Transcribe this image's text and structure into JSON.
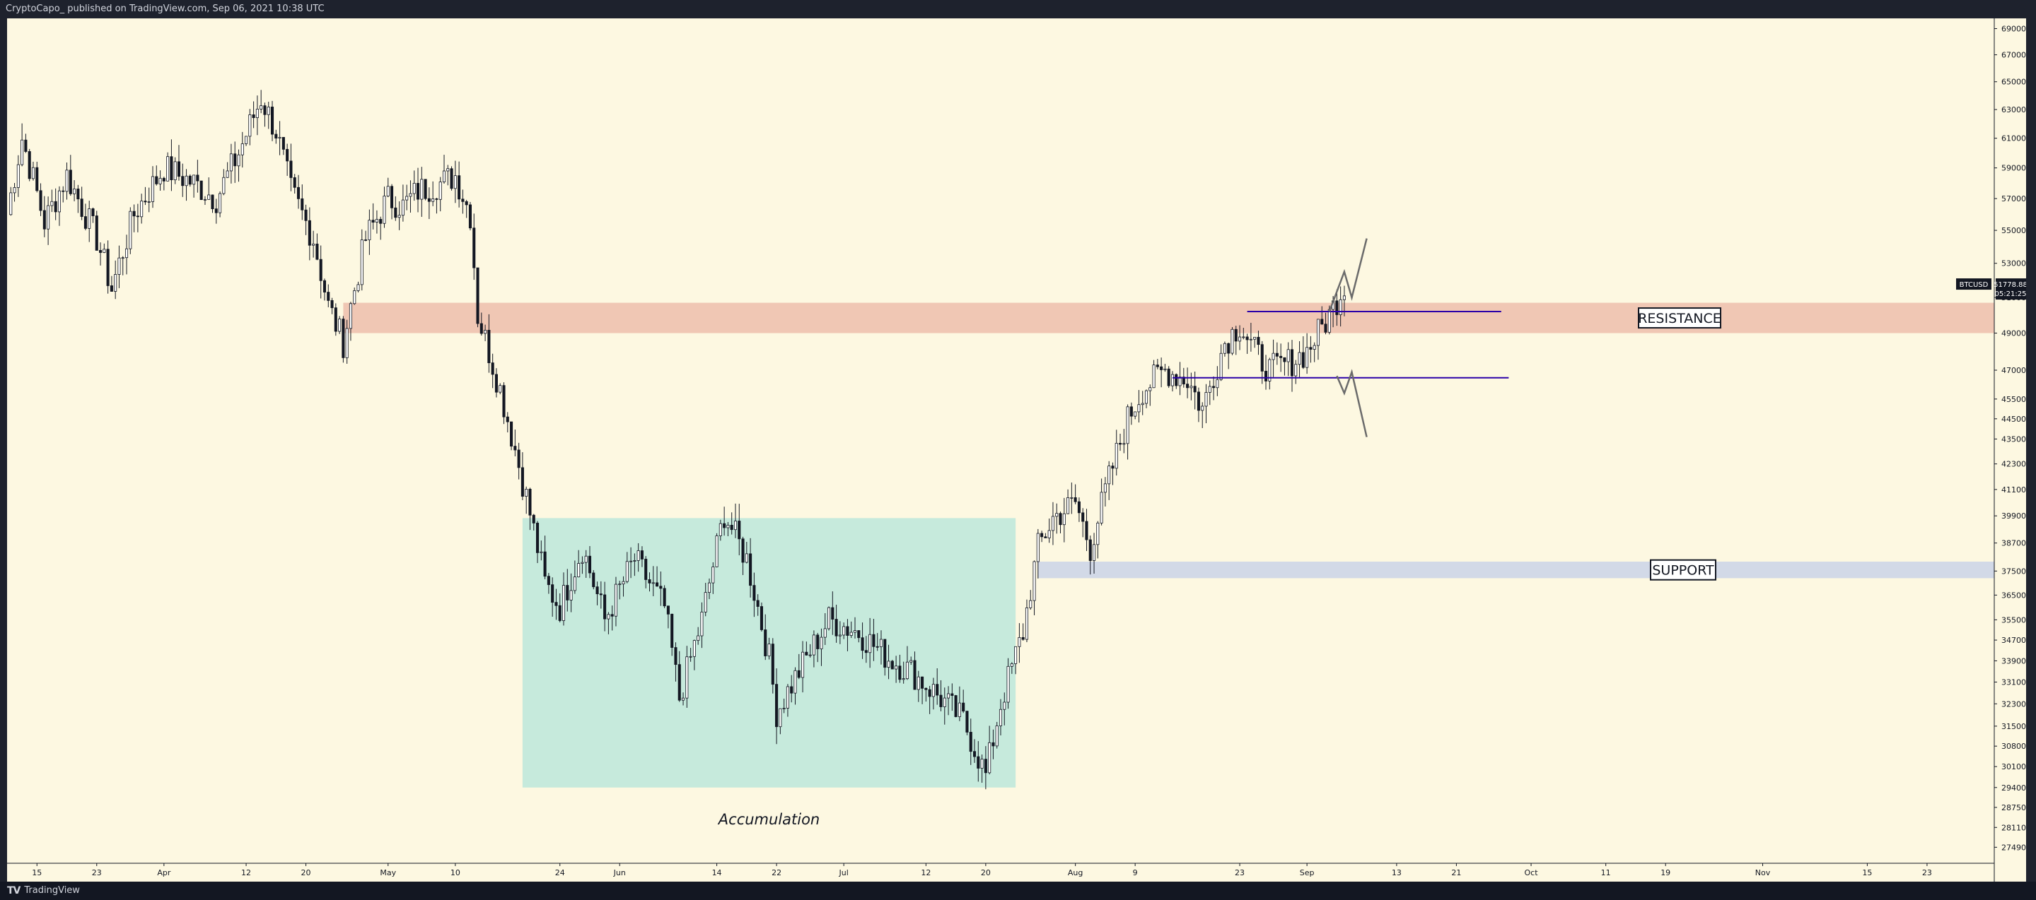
{
  "header": {
    "publisher_line": "CryptoCapo_ published on TradingView.com, Sep 06, 2021 10:38 UTC"
  },
  "footer": {
    "logo_glyph": "TV",
    "brand": "TradingView"
  },
  "colors": {
    "background": "#fdf8e1",
    "candle_body": "#131722",
    "resistance_zone": "#f0c7b4",
    "support_zone": "#d2d9e7",
    "accumulation_zone": "#c6eadc",
    "level_line": "#2a00a8",
    "projection_line": "#6b6b6b"
  },
  "price_tag": {
    "symbol": "BTCUSD",
    "price": "51778.88",
    "countdown": "05:21:25"
  },
  "chart_data": {
    "type": "candlestick",
    "symbol": "BTCUSD",
    "y_scale": "log",
    "ylim": [
      27000,
      69800
    ],
    "y_ticks": [
      "69000.00",
      "67000.00",
      "65000.00",
      "63000.00",
      "61000.00",
      "59000.00",
      "57000.00",
      "55000.00",
      "53000.00",
      "51000.00",
      "49000.00",
      "47000.00",
      "45500.00",
      "44500.00",
      "43500.00",
      "42300.00",
      "41100.00",
      "39900.00",
      "38700.00",
      "37500.00",
      "36500.00",
      "35500.00",
      "34700.00",
      "33900.00",
      "33100.00",
      "32300.00",
      "31500.00",
      "30800.00",
      "30100.00",
      "29400.00",
      "28750.00",
      "28110.00",
      "27490.00"
    ],
    "x_range": [
      "2021-03-11",
      "2021-12-02"
    ],
    "x_ticks": [
      {
        "date": "2021-03-15",
        "label": "15"
      },
      {
        "date": "2021-03-23",
        "label": "23"
      },
      {
        "date": "2021-04-01",
        "label": "Apr"
      },
      {
        "date": "2021-04-12",
        "label": "12"
      },
      {
        "date": "2021-04-20",
        "label": "20"
      },
      {
        "date": "2021-05-01",
        "label": "May"
      },
      {
        "date": "2021-05-10",
        "label": "10"
      },
      {
        "date": "2021-05-24",
        "label": "24"
      },
      {
        "date": "2021-06-01",
        "label": "Jun"
      },
      {
        "date": "2021-06-14",
        "label": "14"
      },
      {
        "date": "2021-06-22",
        "label": "22"
      },
      {
        "date": "2021-07-01",
        "label": "Jul"
      },
      {
        "date": "2021-07-12",
        "label": "12"
      },
      {
        "date": "2021-07-20",
        "label": "20"
      },
      {
        "date": "2021-08-01",
        "label": "Aug"
      },
      {
        "date": "2021-08-09",
        "label": "9"
      },
      {
        "date": "2021-08-23",
        "label": "23"
      },
      {
        "date": "2021-09-01",
        "label": "Sep"
      },
      {
        "date": "2021-09-13",
        "label": "13"
      },
      {
        "date": "2021-09-21",
        "label": "21"
      },
      {
        "date": "2021-10-01",
        "label": "Oct"
      },
      {
        "date": "2021-10-11",
        "label": "11"
      },
      {
        "date": "2021-10-19",
        "label": "19"
      },
      {
        "date": "2021-11-01",
        "label": "Nov"
      },
      {
        "date": "2021-11-15",
        "label": "15"
      },
      {
        "date": "2021-11-23",
        "label": "23"
      }
    ],
    "price_path": [
      [
        "2021-03-11",
        56000
      ],
      [
        "2021-03-13",
        61000
      ],
      [
        "2021-03-16",
        55500
      ],
      [
        "2021-03-19",
        58500
      ],
      [
        "2021-03-23",
        54500
      ],
      [
        "2021-03-25",
        51500
      ],
      [
        "2021-03-28",
        56000
      ],
      [
        "2021-04-01",
        59000
      ],
      [
        "2021-04-05",
        58000
      ],
      [
        "2021-04-08",
        57000
      ],
      [
        "2021-04-11",
        60000
      ],
      [
        "2021-04-14",
        63800
      ],
      [
        "2021-04-16",
        61500
      ],
      [
        "2021-04-18",
        57500
      ],
      [
        "2021-04-21",
        54500
      ],
      [
        "2021-04-23",
        50500
      ],
      [
        "2021-04-25",
        48500
      ],
      [
        "2021-04-28",
        54500
      ],
      [
        "2021-05-01",
        57000
      ],
      [
        "2021-05-03",
        56500
      ],
      [
        "2021-05-05",
        57500
      ],
      [
        "2021-05-08",
        58000
      ],
      [
        "2021-05-10",
        58500
      ],
      [
        "2021-05-12",
        56000
      ],
      [
        "2021-05-13",
        50000
      ],
      [
        "2021-05-16",
        46000
      ],
      [
        "2021-05-18",
        43000
      ],
      [
        "2021-05-20",
        40000
      ],
      [
        "2021-05-22",
        37000
      ],
      [
        "2021-05-24",
        36000
      ],
      [
        "2021-05-27",
        38500
      ],
      [
        "2021-05-30",
        35500
      ],
      [
        "2021-06-03",
        38000
      ],
      [
        "2021-06-07",
        36000
      ],
      [
        "2021-06-09",
        32500
      ],
      [
        "2021-06-12",
        35500
      ],
      [
        "2021-06-15",
        40000
      ],
      [
        "2021-06-18",
        38000
      ],
      [
        "2021-06-21",
        34000
      ],
      [
        "2021-06-22",
        32000
      ],
      [
        "2021-06-25",
        33500
      ],
      [
        "2021-06-29",
        35500
      ],
      [
        "2021-07-03",
        35000
      ],
      [
        "2021-07-07",
        34000
      ],
      [
        "2021-07-10",
        33500
      ],
      [
        "2021-07-14",
        32500
      ],
      [
        "2021-07-17",
        31700
      ],
      [
        "2021-07-20",
        29800
      ],
      [
        "2021-07-22",
        32300
      ],
      [
        "2021-07-25",
        35000
      ],
      [
        "2021-07-27",
        38500
      ],
      [
        "2021-07-29",
        39800
      ],
      [
        "2021-08-01",
        40500
      ],
      [
        "2021-08-03",
        38500
      ],
      [
        "2021-08-05",
        41000
      ],
      [
        "2021-08-08",
        44500
      ],
      [
        "2021-08-10",
        46000
      ],
      [
        "2021-08-13",
        47000
      ],
      [
        "2021-08-16",
        46500
      ],
      [
        "2021-08-18",
        45000
      ],
      [
        "2021-08-21",
        48500
      ],
      [
        "2021-08-23",
        49500
      ],
      [
        "2021-08-25",
        48000
      ],
      [
        "2021-08-27",
        47000
      ],
      [
        "2021-08-30",
        47500
      ],
      [
        "2021-09-01",
        48000
      ],
      [
        "2021-09-04",
        50000
      ],
      [
        "2021-09-06",
        51779
      ]
    ],
    "zones": [
      {
        "name": "RESISTANCE",
        "from": "2021-04-25",
        "to": "2021-12-02",
        "low": 49000,
        "high": 50700
      },
      {
        "name": "SUPPORT",
        "from": "2021-07-27",
        "to": "2021-12-02",
        "low": 37200,
        "high": 37900
      },
      {
        "name": "Accumulation",
        "from": "2021-05-19",
        "to": "2021-07-24",
        "low": 29400,
        "high": 39800
      }
    ],
    "levels": [
      {
        "from": "2021-08-24",
        "to": "2021-09-27",
        "price": 50200
      },
      {
        "from": "2021-08-14",
        "to": "2021-09-28",
        "price": 46600
      }
    ],
    "projections": [
      [
        [
          "2021-09-04",
          50200
        ],
        [
          "2021-09-06",
          52500
        ],
        [
          "2021-09-07",
          51000
        ],
        [
          "2021-09-09",
          54500
        ]
      ],
      [
        [
          "2021-09-05",
          46700
        ],
        [
          "2021-09-06",
          45800
        ],
        [
          "2021-09-07",
          46900
        ],
        [
          "2021-09-09",
          43600
        ]
      ]
    ]
  }
}
